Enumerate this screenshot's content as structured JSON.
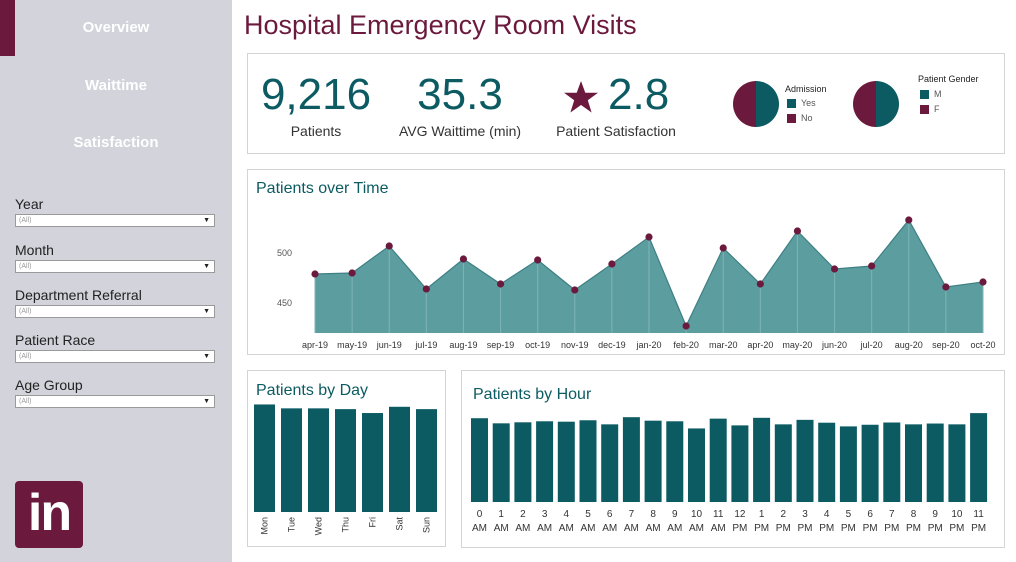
{
  "nav": {
    "items": [
      {
        "label": "Overview",
        "active": true
      },
      {
        "label": "Waittime",
        "active": false
      },
      {
        "label": "Satisfaction",
        "active": false
      }
    ]
  },
  "filters": [
    {
      "label": "Year",
      "value": "(All)"
    },
    {
      "label": "Month",
      "value": "(All)"
    },
    {
      "label": "Department Referral",
      "value": "(All)"
    },
    {
      "label": "Patient Race",
      "value": "(All)"
    },
    {
      "label": "Age Group",
      "value": "(All)"
    }
  ],
  "logo": {
    "text": "in"
  },
  "header": {
    "title": "Hospital Emergency Room Visits"
  },
  "kpis": {
    "patients": {
      "value": "9,216",
      "label": "Patients"
    },
    "waittime": {
      "value": "35.3",
      "label": "AVG Waittime (min)"
    },
    "satisfaction": {
      "value": "2.8",
      "label": "Patient Satisfaction",
      "icon": "star-icon"
    }
  },
  "colors": {
    "teal": "#0c5b63",
    "maroon": "#6b1a3d",
    "area": "#5c9ea0",
    "sidebar": "#d2d3db"
  },
  "chart_data": [
    {
      "type": "pie",
      "title": "Admission",
      "slices": [
        {
          "name": "Yes",
          "value": 50,
          "color": "#0c5b63"
        },
        {
          "name": "No",
          "value": 50,
          "color": "#6b1a3d"
        }
      ]
    },
    {
      "type": "pie",
      "title": "Patient Gender",
      "slices": [
        {
          "name": "M",
          "value": 50,
          "color": "#0c5b63"
        },
        {
          "name": "F",
          "value": 50,
          "color": "#6b1a3d"
        }
      ]
    },
    {
      "type": "area",
      "title": "Patients over Time",
      "categories": [
        "apr-19",
        "may-19",
        "jun-19",
        "jul-19",
        "aug-19",
        "sep-19",
        "oct-19",
        "nov-19",
        "dec-19",
        "jan-20",
        "feb-20",
        "mar-20",
        "apr-20",
        "may-20",
        "jun-20",
        "jul-20",
        "aug-20",
        "sep-20",
        "oct-20"
      ],
      "values": [
        479,
        480,
        507,
        464,
        494,
        469,
        493,
        463,
        489,
        516,
        427,
        505,
        469,
        522,
        484,
        487,
        533,
        466,
        471
      ],
      "yticks": [
        450,
        500
      ],
      "ylim": [
        420,
        545
      ]
    },
    {
      "type": "bar",
      "title": "Patients by Day",
      "categories": [
        "Mon",
        "Tue",
        "Wed",
        "Thu",
        "Fri",
        "Sat",
        "Sun"
      ],
      "values": [
        1380,
        1330,
        1330,
        1320,
        1270,
        1350,
        1320
      ],
      "ylim": [
        0,
        1450
      ]
    },
    {
      "type": "bar",
      "title": "Patients by Hour",
      "categories": [
        "0\nAM",
        "1\nAM",
        "2\nAM",
        "3\nAM",
        "4\nAM",
        "5\nAM",
        "6\nAM",
        "7\nAM",
        "8\nAM",
        "9\nAM",
        "10\nAM",
        "11\nAM",
        "12\nPM",
        "1\nPM",
        "2\nPM",
        "3\nPM",
        "4\nPM",
        "5\nPM",
        "6\nPM",
        "7\nPM",
        "8\nPM",
        "9\nPM",
        "10\nPM",
        "11\nPM"
      ],
      "values": [
        410,
        385,
        390,
        395,
        393,
        400,
        380,
        415,
        398,
        395,
        360,
        408,
        375,
        412,
        380,
        402,
        388,
        370,
        378,
        389,
        380,
        384,
        380,
        435
      ],
      "ylim": [
        0,
        460
      ]
    }
  ]
}
